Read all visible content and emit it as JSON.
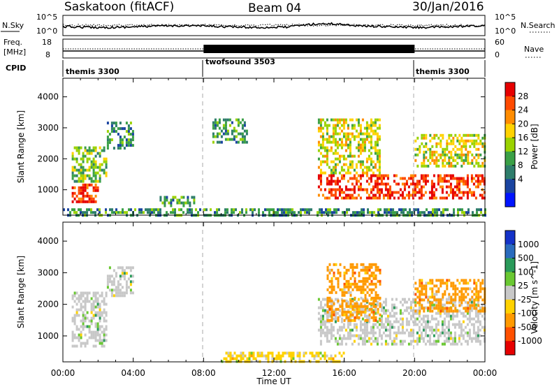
{
  "header": {
    "station": "Saskatoon (fitACF)",
    "beam": "Beam 04",
    "date": "30/Jan/2016"
  },
  "sky_panel": {
    "label": "N.Sky",
    "search_label": "N.Search",
    "left_ticks": [
      "10^5",
      "10^0"
    ],
    "right_ticks": [
      "10^5",
      "10^0"
    ]
  },
  "freq_panel": {
    "label_top": "Freq.",
    "label_bottom": "[MHz]",
    "nave_label": "Nave",
    "left_ticks": [
      "18",
      "8"
    ],
    "right_ticks": [
      "60",
      "0"
    ]
  },
  "cpid": {
    "label": "CPID",
    "segments": [
      {
        "name": "themis 3300",
        "start_hour": 0,
        "end_hour": 8
      },
      {
        "name": "twofsound 3503",
        "start_hour": 8,
        "end_hour": 20
      },
      {
        "name": "themis 3300",
        "start_hour": 20,
        "end_hour": 24
      }
    ]
  },
  "chart_data": [
    {
      "type": "heatmap",
      "name": "power",
      "ylabel": "Slant Range [km]",
      "ylim": [
        180,
        4600
      ],
      "xlim": [
        0,
        24
      ],
      "y_ticks": [
        1000,
        2000,
        3000,
        4000
      ],
      "colorbar": {
        "label": "Power [dB]",
        "tick_labels": [
          "28",
          "24",
          "20",
          "16",
          "12",
          "8",
          "4"
        ],
        "colors": [
          "#e60000",
          "#ff4a00",
          "#ff8c00",
          "#ffd200",
          "#9ad200",
          "#3aa046",
          "#2e7d6b",
          "#1a44a0",
          "#0014ff"
        ]
      },
      "regions": [
        {
          "x": [
            0.5,
            2.0
          ],
          "y": [
            600,
            1200
          ],
          "level": 24
        },
        {
          "x": [
            0.5,
            2.5
          ],
          "y": [
            1300,
            2400
          ],
          "level": 10
        },
        {
          "x": [
            2.5,
            4.0
          ],
          "y": [
            2300,
            3200
          ],
          "level": 8
        },
        {
          "x": [
            5.5,
            7.5
          ],
          "y": [
            500,
            800
          ],
          "level": 8
        },
        {
          "x": [
            8.5,
            10.5
          ],
          "y": [
            2500,
            3300
          ],
          "level": 8
        },
        {
          "x": [
            14.5,
            18.0
          ],
          "y": [
            1500,
            3300
          ],
          "level": 14
        },
        {
          "x": [
            14.5,
            24.0
          ],
          "y": [
            700,
            1500
          ],
          "level": 24
        },
        {
          "x": [
            20.0,
            24.0
          ],
          "y": [
            1800,
            2800
          ],
          "level": 14
        },
        {
          "x": [
            0.0,
            24.0
          ],
          "y": [
            200,
            400
          ],
          "level": 8
        }
      ]
    },
    {
      "type": "heatmap",
      "name": "velocity",
      "xlabel": "Time UT",
      "ylabel": "Slant Range [km]",
      "ylim": [
        180,
        4600
      ],
      "xlim": [
        0,
        24
      ],
      "y_ticks": [
        1000,
        2000,
        3000,
        4000
      ],
      "x_tick_labels": [
        "00:00",
        "04:00",
        "08:00",
        "12:00",
        "16:00",
        "20:00",
        "00:00"
      ],
      "colorbar": {
        "label": "Velocity [m s^-1]",
        "tick_labels": [
          "1000",
          "500",
          "100",
          "25",
          "-25",
          "-100",
          "-500",
          "-1000"
        ],
        "colors": [
          "#1432c8",
          "#2a6bbd",
          "#2a9a5a",
          "#6ac832",
          "#c8c8c8",
          "#ffd200",
          "#ff9a00",
          "#ff5000",
          "#e60000"
        ]
      },
      "regions": [
        {
          "x": [
            0.5,
            2.5
          ],
          "y": [
            700,
            2400
          ],
          "velocity": 0
        },
        {
          "x": [
            2.5,
            4.0
          ],
          "y": [
            2300,
            3200
          ],
          "velocity": 0
        },
        {
          "x": [
            14.5,
            24.0
          ],
          "y": [
            700,
            2200
          ],
          "velocity": 0
        },
        {
          "x": [
            15.0,
            18.0
          ],
          "y": [
            1500,
            3300
          ],
          "velocity": -200
        },
        {
          "x": [
            20.0,
            24.0
          ],
          "y": [
            1800,
            2800
          ],
          "velocity": -200
        },
        {
          "x": [
            9.0,
            16.0
          ],
          "y": [
            200,
            500
          ],
          "velocity": -100
        }
      ]
    }
  ]
}
